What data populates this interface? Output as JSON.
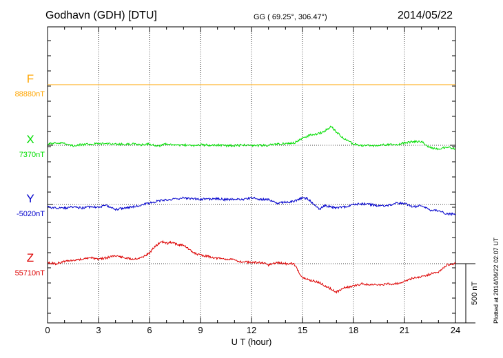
{
  "header": {
    "station": "Godhavn (GDH)  [DTU]",
    "coords": "GG ( 69.25°, 306.47°)",
    "date": "2014/05/22"
  },
  "footer_note": "Plotted at 2014/06/22 02:07 UT",
  "colors": {
    "F": "#FFA500",
    "X": "#00DD00",
    "Y": "#0000CC",
    "Z": "#DD0000",
    "axes": "#000000"
  },
  "chart_data": {
    "type": "line",
    "title": "",
    "xlabel": "U T (hour)",
    "xlim": [
      0,
      24
    ],
    "x_ticks": [
      0,
      3,
      6,
      9,
      12,
      15,
      18,
      21,
      24
    ],
    "scale_bar": {
      "label": "500 nT",
      "value_nT": 500
    },
    "series": [
      {
        "name": "F",
        "color": "#FFA500",
        "baseline_label": "88880nT",
        "x": [
          0,
          24
        ],
        "y": [
          0,
          0
        ]
      },
      {
        "name": "X",
        "color": "#00DD00",
        "baseline_label": "7370nT",
        "x": [
          0,
          0.5,
          1,
          1.5,
          2,
          2.5,
          3,
          3.5,
          4,
          4.5,
          5,
          5.5,
          6,
          6.5,
          7,
          7.5,
          8,
          8.5,
          9,
          9.5,
          10,
          10.5,
          11,
          11.5,
          12,
          12.5,
          13,
          13.5,
          14,
          14.5,
          15,
          15.5,
          16,
          16.3,
          16.7,
          17,
          17.5,
          18,
          18.5,
          19,
          19.5,
          20,
          20.5,
          21,
          21.5,
          22,
          22.5,
          23,
          23.5,
          24
        ],
        "y": [
          10,
          20,
          15,
          -5,
          5,
          10,
          12,
          15,
          8,
          10,
          12,
          2,
          10,
          -8,
          10,
          0,
          5,
          -5,
          5,
          0,
          2,
          -5,
          -2,
          2,
          -5,
          -2,
          0,
          10,
          15,
          20,
          60,
          90,
          100,
          120,
          160,
          110,
          50,
          10,
          0,
          -5,
          0,
          5,
          5,
          20,
          30,
          30,
          -20,
          -30,
          -15,
          -30
        ]
      },
      {
        "name": "Y",
        "color": "#0000CC",
        "baseline_label": "-5020nT",
        "x": [
          0,
          0.5,
          1,
          1.5,
          2,
          2.5,
          3,
          3.5,
          4,
          4.5,
          5,
          5.5,
          6,
          6.5,
          7,
          7.5,
          8,
          8.5,
          9,
          9.5,
          10,
          10.5,
          11,
          11.5,
          12,
          12.5,
          13,
          13.5,
          14,
          14.5,
          15,
          15.3,
          15.7,
          16,
          16.3,
          16.7,
          17,
          17.5,
          18,
          18.5,
          19,
          19.5,
          20,
          20.5,
          21,
          21.5,
          22,
          22.5,
          23,
          23.5,
          24
        ],
        "y": [
          -20,
          -30,
          -30,
          -20,
          -30,
          -20,
          -20,
          -10,
          -40,
          -30,
          -20,
          -5,
          10,
          30,
          40,
          45,
          55,
          50,
          45,
          45,
          50,
          40,
          45,
          40,
          55,
          45,
          40,
          10,
          20,
          25,
          55,
          50,
          0,
          -40,
          -10,
          -20,
          -30,
          -20,
          0,
          5,
          0,
          -10,
          -10,
          10,
          10,
          -20,
          -10,
          -50,
          -50,
          -80,
          -80
        ]
      },
      {
        "name": "Z",
        "color": "#DD0000",
        "baseline_label": "55710nT",
        "x": [
          0,
          0.5,
          1,
          1.5,
          2,
          2.5,
          3,
          3.5,
          4,
          4.5,
          5,
          5.5,
          6,
          6.3,
          6.7,
          7,
          7.3,
          7.7,
          8,
          8.5,
          9,
          9.5,
          10,
          10.5,
          11,
          11.5,
          12,
          12.5,
          13,
          13.5,
          14,
          14.5,
          15,
          15.5,
          16,
          16.5,
          17,
          17.5,
          18,
          18.5,
          19,
          19.5,
          20,
          20.5,
          21,
          21.5,
          22,
          22.5,
          23,
          23.5,
          24
        ],
        "y": [
          10,
          0,
          20,
          30,
          40,
          50,
          40,
          50,
          70,
          50,
          40,
          50,
          90,
          140,
          190,
          170,
          180,
          160,
          160,
          100,
          70,
          60,
          45,
          40,
          30,
          15,
          10,
          10,
          -10,
          10,
          0,
          0,
          -120,
          -140,
          -160,
          -200,
          -240,
          -200,
          -190,
          -170,
          -180,
          -180,
          -170,
          -170,
          -150,
          -120,
          -110,
          -90,
          -70,
          -10,
          0
        ]
      }
    ]
  }
}
